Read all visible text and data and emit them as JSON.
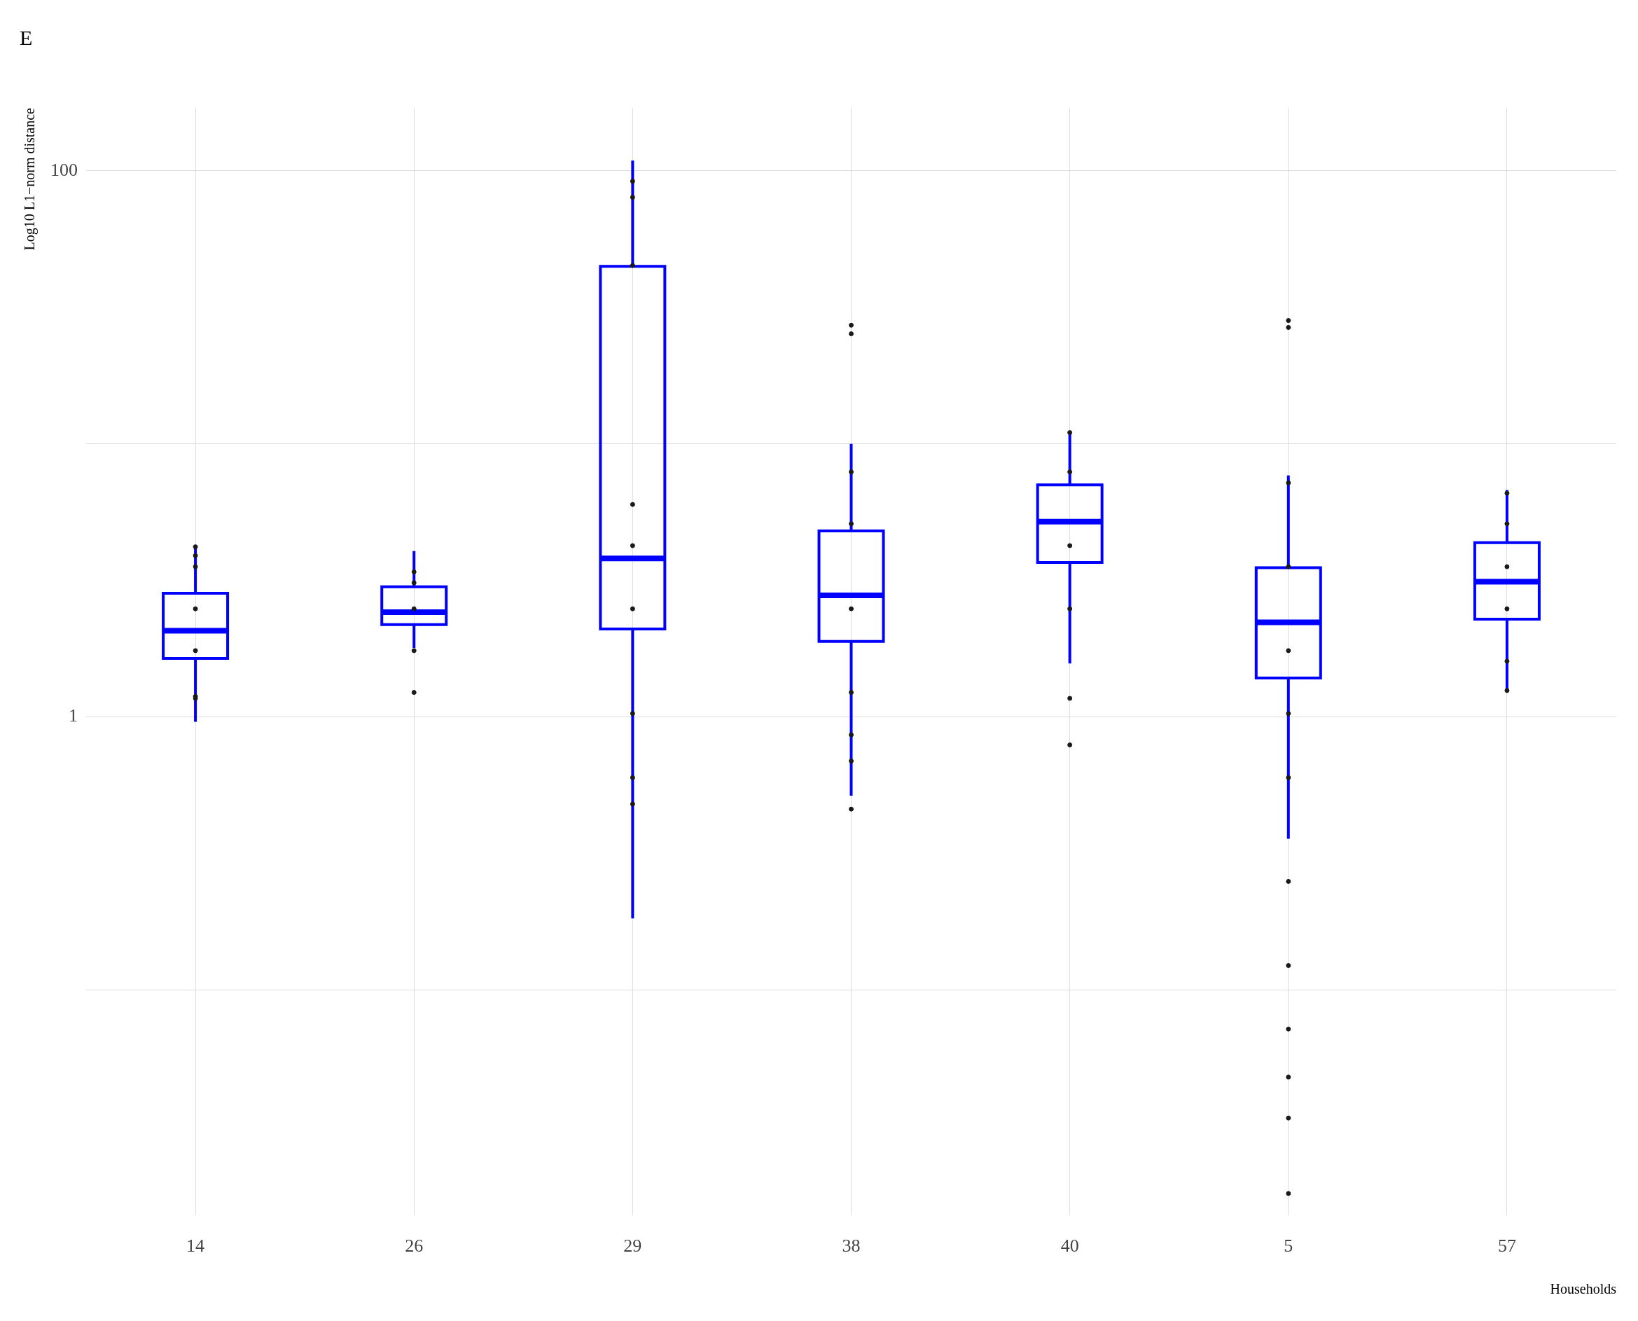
{
  "chart_data": {
    "type": "box",
    "title": "E",
    "xlabel": "Households",
    "ylabel": "Log10 L1−norm distance",
    "categories": [
      "14",
      "26",
      "29",
      "38",
      "40",
      "5",
      "57"
    ],
    "log": "y",
    "ylim": [
      0.015,
      170
    ],
    "yticks": [
      {
        "value": 0.1,
        "label": null
      },
      1,
      {
        "value": 10,
        "label": null
      },
      100
    ],
    "grid": true,
    "legend": false,
    "marker": "circle",
    "series": [
      {
        "type": "box",
        "color": "#0000ff",
        "boxes": [
          {
            "low": 0.96,
            "q1": 1.64,
            "median": 2.07,
            "q3": 2.84,
            "high": 4.24
          },
          {
            "low": 1.79,
            "q1": 2.18,
            "median": 2.42,
            "q3": 3.0,
            "high": 4.05
          },
          {
            "low": 0.183,
            "q1": 2.1,
            "median": 3.81,
            "q3": 44.7,
            "high": 109
          },
          {
            "low": 0.515,
            "q1": 1.89,
            "median": 2.79,
            "q3": 4.8,
            "high": 10
          },
          {
            "low": 1.57,
            "q1": 3.68,
            "median": 5.19,
            "q3": 7.08,
            "high": 11
          },
          {
            "low": 0.358,
            "q1": 1.39,
            "median": 2.22,
            "q3": 3.52,
            "high": 7.67
          },
          {
            "low": 1.25,
            "q1": 2.28,
            "median": 3.13,
            "q3": 4.35,
            "high": 6.77
          }
        ]
      },
      {
        "type": "scatter",
        "color": "#1a1a1a",
        "x": [
          "14",
          "14",
          "14",
          "14",
          "14",
          "14",
          "14",
          "26",
          "26",
          "26",
          "26",
          "26",
          "29",
          "29",
          "29",
          "29",
          "29",
          "29",
          "29",
          "29",
          "29",
          "38",
          "38",
          "38",
          "38",
          "38",
          "38",
          "38",
          "38",
          "38",
          "40",
          "40",
          "40",
          "40",
          "40",
          "40",
          "5",
          "5",
          "5",
          "5",
          "5",
          "5",
          "5",
          "5",
          "5",
          "5",
          "5",
          "5",
          "5",
          "57",
          "57",
          "57",
          "57",
          "57",
          "57"
        ],
        "values": [
          3.55,
          2.49,
          1.75,
          3.9,
          1.17,
          4.2,
          1.19,
          3.4,
          3.1,
          1.75,
          2.49,
          1.23,
          91.6,
          80,
          45,
          6.0,
          4.24,
          2.49,
          1.03,
          0.6,
          0.48,
          27.2,
          25.3,
          7.9,
          5.1,
          2.49,
          1.23,
          0.86,
          0.69,
          0.46,
          11,
          7.9,
          4.24,
          2.49,
          1.17,
          0.79,
          28.3,
          26.7,
          7.2,
          3.55,
          1.75,
          1.03,
          0.6,
          0.25,
          0.123,
          0.072,
          0.048,
          0.034,
          0.018,
          6.6,
          5.1,
          3.55,
          2.49,
          1.6,
          1.25
        ]
      }
    ]
  }
}
